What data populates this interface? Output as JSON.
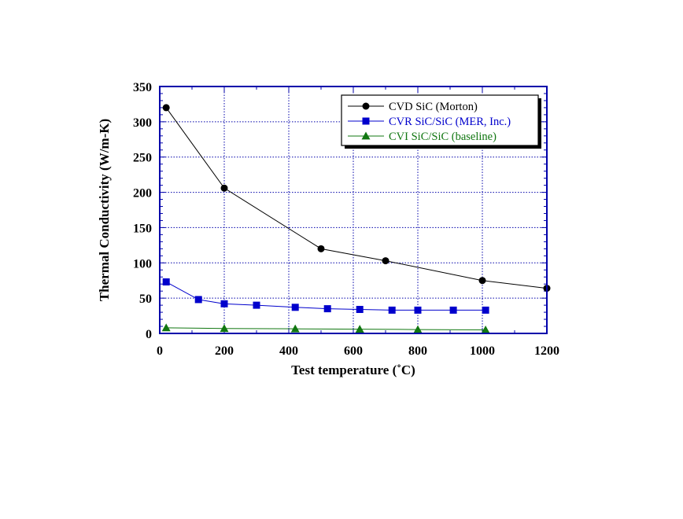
{
  "chart_data": {
    "type": "line",
    "xlabel": "Test temperature (˚C)",
    "ylabel": "Thermal Conductivity (W/m-K)",
    "xlim": [
      0,
      1200
    ],
    "ylim": [
      0,
      350
    ],
    "xticks": [
      0,
      200,
      400,
      600,
      800,
      1000,
      1200
    ],
    "yticks": [
      0,
      50,
      100,
      150,
      200,
      250,
      300,
      350
    ],
    "grid": true,
    "legend_position": "top-right",
    "series": [
      {
        "name": "CVD SiC (Morton)",
        "color": "#000000",
        "marker": "circle",
        "x": [
          20,
          200,
          500,
          700,
          1000,
          1200
        ],
        "y": [
          320,
          206,
          120,
          103,
          75,
          64
        ]
      },
      {
        "name": "CVR SiC/SiC (MER, Inc.)",
        "color": "#0000cc",
        "marker": "square",
        "x": [
          20,
          120,
          200,
          300,
          420,
          520,
          620,
          720,
          800,
          910,
          1010
        ],
        "y": [
          73,
          48,
          42,
          40,
          37,
          35,
          34,
          33,
          33,
          33,
          33
        ]
      },
      {
        "name": "CVI SiC/SiC (baseline)",
        "color": "#117711",
        "marker": "triangle",
        "x": [
          20,
          200,
          420,
          620,
          800,
          1010
        ],
        "y": [
          8,
          7,
          6.5,
          6,
          5.5,
          5
        ]
      }
    ]
  }
}
